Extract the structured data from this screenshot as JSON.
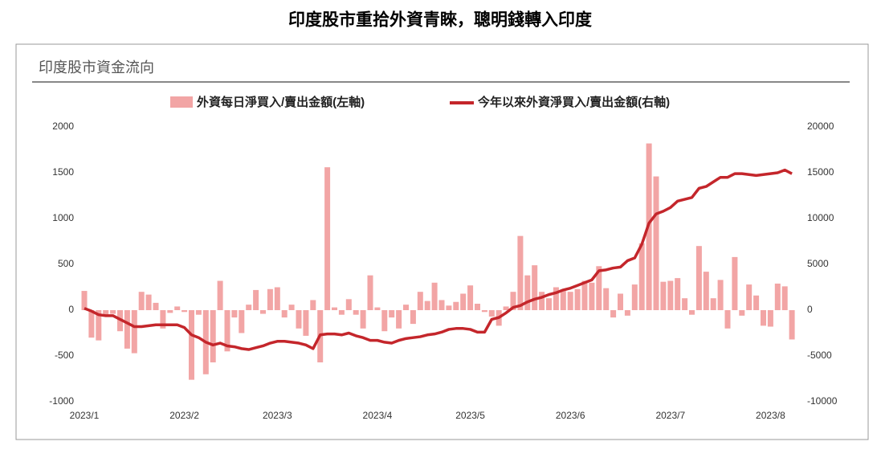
{
  "title": "印度股市重拾外資青睞，聰明錢轉入印度",
  "chart_data": {
    "type": "bar-line",
    "title": "印度股市資金流向",
    "categories": [
      "2023/1",
      null,
      null,
      null,
      null,
      null,
      null,
      null,
      null,
      null,
      null,
      null,
      null,
      null,
      "2023/2",
      null,
      null,
      null,
      null,
      null,
      null,
      null,
      null,
      null,
      null,
      null,
      null,
      "2023/3",
      null,
      null,
      null,
      null,
      null,
      null,
      null,
      null,
      null,
      null,
      null,
      null,
      null,
      "2023/4",
      null,
      null,
      null,
      null,
      null,
      null,
      null,
      null,
      null,
      null,
      null,
      null,
      "2023/5",
      null,
      null,
      null,
      null,
      null,
      null,
      null,
      null,
      null,
      null,
      null,
      null,
      null,
      "2023/6",
      null,
      null,
      null,
      null,
      null,
      null,
      null,
      null,
      null,
      null,
      null,
      null,
      null,
      "2023/7",
      null,
      null,
      null,
      null,
      null,
      null,
      null,
      null,
      null,
      null,
      null,
      null,
      null,
      "2023/8",
      null,
      null,
      null
    ],
    "series": [
      {
        "name": "外資每日淨買入/賣出金額(左軸)",
        "type": "bar",
        "axis": "y",
        "color": "#f2a5a5",
        "values": [
          210,
          -300,
          -330,
          -60,
          -40,
          -230,
          -420,
          -470,
          200,
          170,
          80,
          -200,
          -30,
          40,
          -20,
          -760,
          -50,
          -700,
          -570,
          320,
          -450,
          -80,
          -250,
          60,
          220,
          -40,
          230,
          250,
          -80,
          60,
          -200,
          -280,
          110,
          -570,
          1560,
          30,
          -50,
          120,
          -50,
          -200,
          380,
          30,
          -230,
          -80,
          -200,
          60,
          -150,
          200,
          100,
          300,
          110,
          50,
          90,
          180,
          270,
          70,
          -20,
          -70,
          -170,
          40,
          200,
          810,
          380,
          490,
          200,
          130,
          250,
          210,
          200,
          230,
          320,
          300,
          480,
          240,
          -80,
          180,
          -60,
          280,
          730,
          1820,
          1460,
          310,
          320,
          350,
          130,
          -50,
          700,
          420,
          130,
          330,
          -200,
          580,
          -60,
          280,
          160,
          -170,
          -180,
          290,
          260,
          -320
        ]
      },
      {
        "name": "今年以來外資淨買入/賣出金額(右軸)",
        "type": "line",
        "axis": "y2",
        "color": "#c4262b",
        "values": [
          200,
          -100,
          -500,
          -600,
          -600,
          -1000,
          -1400,
          -1800,
          -1800,
          -1700,
          -1600,
          -1600,
          -1600,
          -1600,
          -1900,
          -2700,
          -3000,
          -3500,
          -3800,
          -3600,
          -3900,
          -4000,
          -4200,
          -4300,
          -4100,
          -3900,
          -3600,
          -3400,
          -3400,
          -3500,
          -3600,
          -3800,
          -4200,
          -2700,
          -2600,
          -2600,
          -2700,
          -2500,
          -2800,
          -3000,
          -3300,
          -3300,
          -3500,
          -3600,
          -3300,
          -3100,
          -3000,
          -2900,
          -2700,
          -2600,
          -2400,
          -2100,
          -2000,
          -2000,
          -2100,
          -2400,
          -2400,
          -1000,
          -800,
          -300,
          300,
          500,
          900,
          1200,
          1400,
          1700,
          1900,
          2200,
          2400,
          2700,
          3000,
          3300,
          4300,
          4400,
          4600,
          4700,
          5400,
          5700,
          7200,
          9500,
          10500,
          10800,
          11200,
          11900,
          12100,
          12300,
          13300,
          13500,
          14000,
          14500,
          14500,
          14900,
          14900,
          14800,
          14700,
          14800,
          14900,
          15000,
          15300,
          14900
        ]
      }
    ],
    "ylim": [
      -1000,
      2000
    ],
    "yticks": [
      -1000,
      -500,
      0,
      500,
      1000,
      1500,
      2000
    ],
    "y2lim": [
      -10000,
      20000
    ],
    "y2ticks": [
      -10000,
      -5000,
      0,
      5000,
      10000,
      15000,
      20000
    ],
    "legend": "top"
  }
}
